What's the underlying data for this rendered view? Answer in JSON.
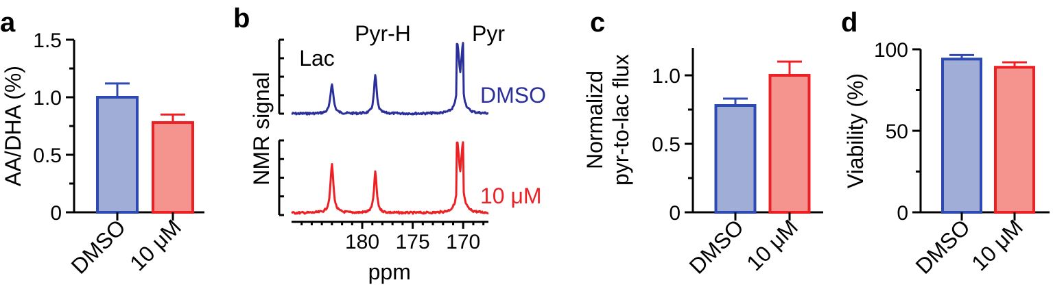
{
  "colors": {
    "dmso_fill": "#9fadd7",
    "dmso_edge": "#2e4ab0",
    "treat_fill": "#f5948f",
    "treat_edge": "#ed2024",
    "nmr_dmso": "#2b2f9a",
    "nmr_treat": "#ed2024"
  },
  "chart_data": [
    {
      "panel": "a",
      "type": "bar",
      "categories": [
        "DMSO",
        "10 μM"
      ],
      "values": [
        1.0,
        0.78
      ],
      "errors": [
        0.12,
        0.07
      ],
      "ylabel": "AA/DHA (%)",
      "ylim": [
        0,
        1.5
      ],
      "yticks": [
        0,
        0.5,
        1.0,
        1.5
      ],
      "ytick_labels": [
        "0",
        "0.5",
        "1.0",
        "1.5"
      ]
    },
    {
      "panel": "b",
      "type": "line",
      "title": "",
      "xlabel": "ppm",
      "ylabel": "NMR signal",
      "xlim": [
        187,
        167.5
      ],
      "xticks": [
        180,
        175,
        170
      ],
      "xtick_labels": [
        "180",
        "175",
        "170"
      ],
      "peaks": [
        {
          "label": "Lac",
          "ppm": 183.0
        },
        {
          "label": "Pyr-H",
          "ppm": 178.7
        },
        {
          "label": "Pyr",
          "ppm": 170.3
        }
      ],
      "series": [
        {
          "name": "DMSO",
          "peak_heights": [
            0.48,
            0.62,
            1.2
          ]
        },
        {
          "name": "10 μM",
          "peak_heights": [
            0.78,
            0.66,
            1.2
          ]
        }
      ]
    },
    {
      "panel": "c",
      "type": "bar",
      "categories": [
        "DMSO",
        "10 μM"
      ],
      "values": [
        0.78,
        1.0
      ],
      "errors": [
        0.05,
        0.1
      ],
      "ylabel_lines": [
        "Normalizd",
        "pyr-to-lac flux"
      ],
      "ylim": [
        0,
        1.2
      ],
      "yticks": [
        0,
        0.5,
        1.0
      ],
      "ytick_labels": [
        "0",
        "0.5",
        "1.0"
      ]
    },
    {
      "panel": "d",
      "type": "bar",
      "categories": [
        "DMSO",
        "10 μM"
      ],
      "values": [
        94,
        89
      ],
      "errors": [
        2.5,
        3
      ],
      "ylabel": "Viability (%)",
      "ylim": [
        0,
        100
      ],
      "yticks": [
        0,
        50,
        100
      ],
      "ytick_labels": [
        "0",
        "50",
        "100"
      ]
    }
  ]
}
